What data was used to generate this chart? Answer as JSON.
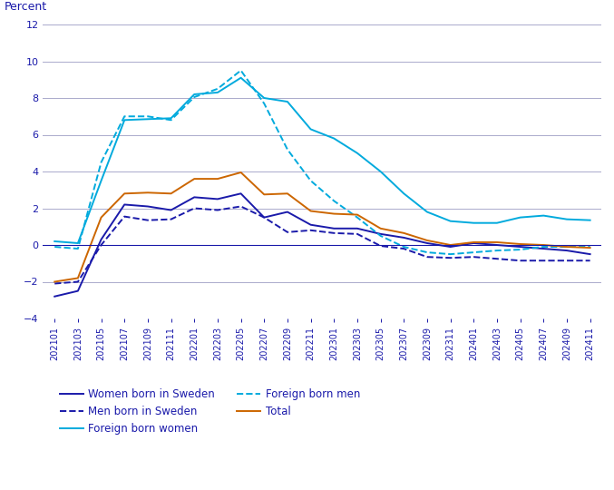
{
  "x_labels": [
    "202101",
    "202103",
    "202105",
    "202107",
    "202109",
    "202111",
    "202201",
    "202203",
    "202205",
    "202207",
    "202209",
    "202211",
    "202301",
    "202303",
    "202305",
    "202307",
    "202309",
    "202311",
    "202401",
    "202403",
    "202405",
    "202407",
    "202409",
    "202411"
  ],
  "women_born_sweden": [
    -2.8,
    -2.5,
    0.3,
    2.2,
    2.1,
    1.9,
    2.6,
    2.5,
    2.8,
    1.5,
    1.8,
    1.1,
    0.9,
    0.9,
    0.6,
    0.4,
    0.1,
    -0.1,
    0.1,
    0.0,
    -0.1,
    -0.2,
    -0.3,
    -0.5
  ],
  "men_born_sweden": [
    -2.1,
    -2.0,
    0.0,
    1.55,
    1.35,
    1.4,
    2.0,
    1.9,
    2.1,
    1.5,
    0.7,
    0.8,
    0.65,
    0.6,
    -0.05,
    -0.2,
    -0.65,
    -0.7,
    -0.65,
    -0.75,
    -0.85,
    -0.85,
    -0.85,
    -0.85
  ],
  "foreign_born_women": [
    0.2,
    0.1,
    3.5,
    6.8,
    6.85,
    6.9,
    8.2,
    8.3,
    9.1,
    8.0,
    7.8,
    6.3,
    5.8,
    5.0,
    4.0,
    2.8,
    1.8,
    1.3,
    1.2,
    1.2,
    1.5,
    1.6,
    1.4,
    1.35
  ],
  "foreign_born_men": [
    -0.1,
    -0.2,
    4.5,
    7.0,
    7.0,
    6.8,
    8.05,
    8.5,
    9.5,
    7.7,
    5.2,
    3.5,
    2.4,
    1.5,
    0.5,
    -0.1,
    -0.4,
    -0.5,
    -0.4,
    -0.3,
    -0.25,
    -0.1,
    -0.1,
    -0.1
  ],
  "total": [
    -2.0,
    -1.8,
    1.5,
    2.8,
    2.85,
    2.8,
    3.6,
    3.6,
    3.95,
    2.75,
    2.8,
    1.85,
    1.7,
    1.65,
    0.9,
    0.65,
    0.25,
    0.0,
    0.15,
    0.15,
    0.05,
    0.0,
    -0.1,
    -0.15
  ],
  "color_women_sweden": "#1a1aaa",
  "color_men_sweden": "#1a1aaa",
  "color_foreign_women": "#00aadd",
  "color_foreign_men": "#00aadd",
  "color_total": "#cc6600",
  "percent_label": "Percent",
  "ylim": [
    -4,
    12
  ],
  "yticks": [
    -4,
    -2,
    0,
    2,
    4,
    6,
    8,
    10,
    12
  ],
  "background_color": "#ffffff",
  "grid_color": "#aaaacc",
  "text_color": "#1a1aaa",
  "legend_labels": [
    "Women born in Sweden",
    "Men born in Sweden",
    "Foreign born women",
    "Foreign born men",
    "Total"
  ]
}
